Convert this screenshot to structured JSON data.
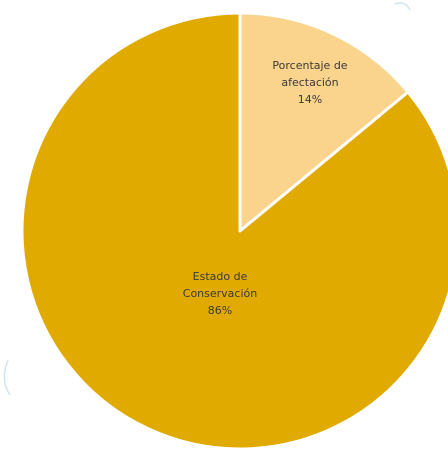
{
  "chart_data": {
    "type": "pie",
    "title": "",
    "start": "top, clockwise",
    "slices": [
      {
        "name_lines": [
          "Porcentaje de",
          "afectación"
        ],
        "value": 14,
        "value_label": "14%",
        "color": "#FAD38C"
      },
      {
        "name_lines": [
          "Estado de",
          "Conservación"
        ],
        "value": 86,
        "value_label": "86%",
        "color": "#E0AA00"
      }
    ]
  },
  "colors": {
    "background": "#ffffff",
    "slice_border": "#ffffff",
    "label_text": "#3a3a3a"
  }
}
